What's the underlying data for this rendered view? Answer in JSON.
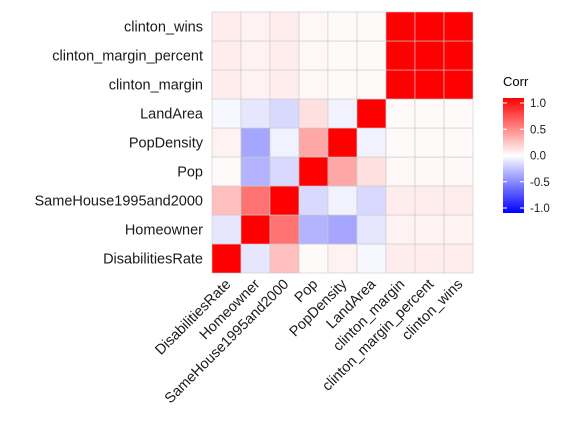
{
  "chart_data": {
    "type": "heatmap",
    "variables": [
      "DisabilitiesRate",
      "Homeowner",
      "SameHouse1995and2000",
      "Pop",
      "PopDensity",
      "LandArea",
      "clinton_margin",
      "clinton_margin_percent",
      "clinton_wins"
    ],
    "matrix": [
      [
        1.0,
        -0.1,
        0.25,
        0.02,
        0.05,
        -0.03,
        0.07,
        0.07,
        0.07
      ],
      [
        -0.1,
        1.0,
        0.55,
        -0.3,
        -0.35,
        -0.1,
        0.05,
        0.05,
        0.05
      ],
      [
        0.25,
        0.55,
        1.0,
        -0.15,
        -0.05,
        -0.15,
        0.07,
        0.07,
        0.07
      ],
      [
        0.02,
        -0.3,
        -0.15,
        1.0,
        0.35,
        0.12,
        0.03,
        0.03,
        0.03
      ],
      [
        0.05,
        -0.35,
        -0.05,
        0.35,
        1.0,
        -0.05,
        0.02,
        0.02,
        0.02
      ],
      [
        -0.03,
        -0.1,
        -0.15,
        0.12,
        -0.05,
        1.0,
        0.02,
        0.02,
        0.02
      ],
      [
        0.07,
        0.05,
        0.07,
        0.03,
        0.02,
        0.02,
        1.0,
        1.0,
        1.0
      ],
      [
        0.07,
        0.05,
        0.07,
        0.03,
        0.02,
        0.02,
        1.0,
        1.0,
        1.0
      ],
      [
        0.07,
        0.05,
        0.07,
        0.03,
        0.02,
        0.02,
        1.0,
        1.0,
        1.0
      ]
    ],
    "legend": {
      "title": "Corr",
      "ticks": [
        {
          "value": 1.0,
          "label": "1.0"
        },
        {
          "value": 0.5,
          "label": "0.5"
        },
        {
          "value": 0.0,
          "label": "0.0"
        },
        {
          "value": -0.5,
          "label": "-0.5"
        },
        {
          "value": -1.0,
          "label": "-1.0"
        }
      ],
      "range": [
        -1,
        1
      ],
      "placement": "right"
    },
    "colors": {
      "low": "#0000ff",
      "mid": "#ffffff",
      "high": "#ff0000",
      "grid": "#c8c8c8"
    }
  }
}
